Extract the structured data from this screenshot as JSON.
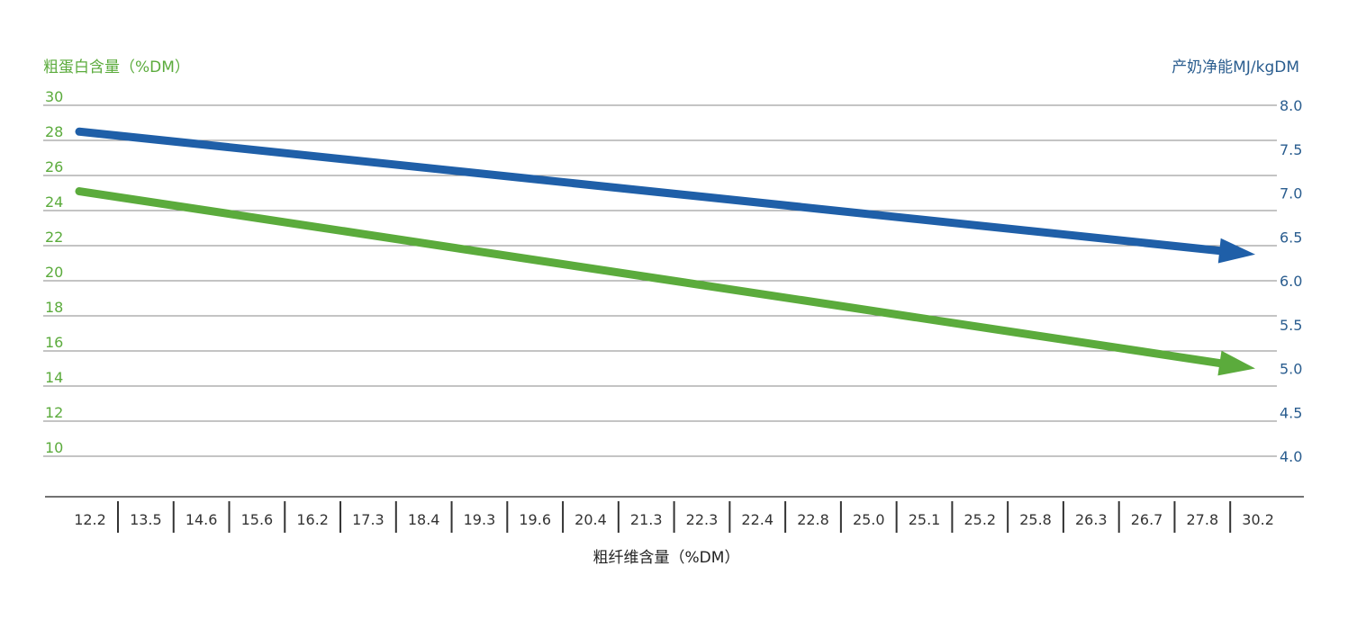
{
  "chart_data": {
    "type": "line",
    "x_axis": {
      "label": "粗纤维含量（%DM）",
      "categories": [
        "12.2",
        "13.5",
        "14.6",
        "15.6",
        "16.2",
        "17.3",
        "18.4",
        "19.3",
        "19.6",
        "20.4",
        "21.3",
        "22.3",
        "22.4",
        "22.8",
        "25.0",
        "25.1",
        "25.2",
        "25.8",
        "26.3",
        "26.7",
        "27.8",
        "30.2"
      ]
    },
    "y_left": {
      "label": "粗蛋白含量（%DM）",
      "ticks": [
        "10",
        "12",
        "14",
        "16",
        "18",
        "20",
        "22",
        "24",
        "26",
        "28",
        "30"
      ],
      "range": [
        10,
        30
      ]
    },
    "y_right": {
      "label": "产奶净能MJ/kgDM",
      "ticks": [
        "4.0",
        "4.5",
        "5.0",
        "5.5",
        "6.0",
        "6.5",
        "7.0",
        "7.5",
        "8.0"
      ],
      "range": [
        4.0,
        8.0
      ]
    },
    "series": [
      {
        "axis": "right",
        "color": "#1f5fa8",
        "start": {
          "x": "12.2",
          "y": 7.7
        },
        "end": {
          "x": "30.2",
          "y": 6.3
        }
      },
      {
        "axis": "left",
        "color": "#5bab3c",
        "start": {
          "x": "12.2",
          "y": 25.1
        },
        "end": {
          "x": "30.2",
          "y": 15.0
        }
      }
    ],
    "grid": true,
    "colors": {
      "left_axis": "#5bab3c",
      "right_axis": "#2a5d8f",
      "grid": "#8a8a8a",
      "text": "#333333"
    }
  }
}
